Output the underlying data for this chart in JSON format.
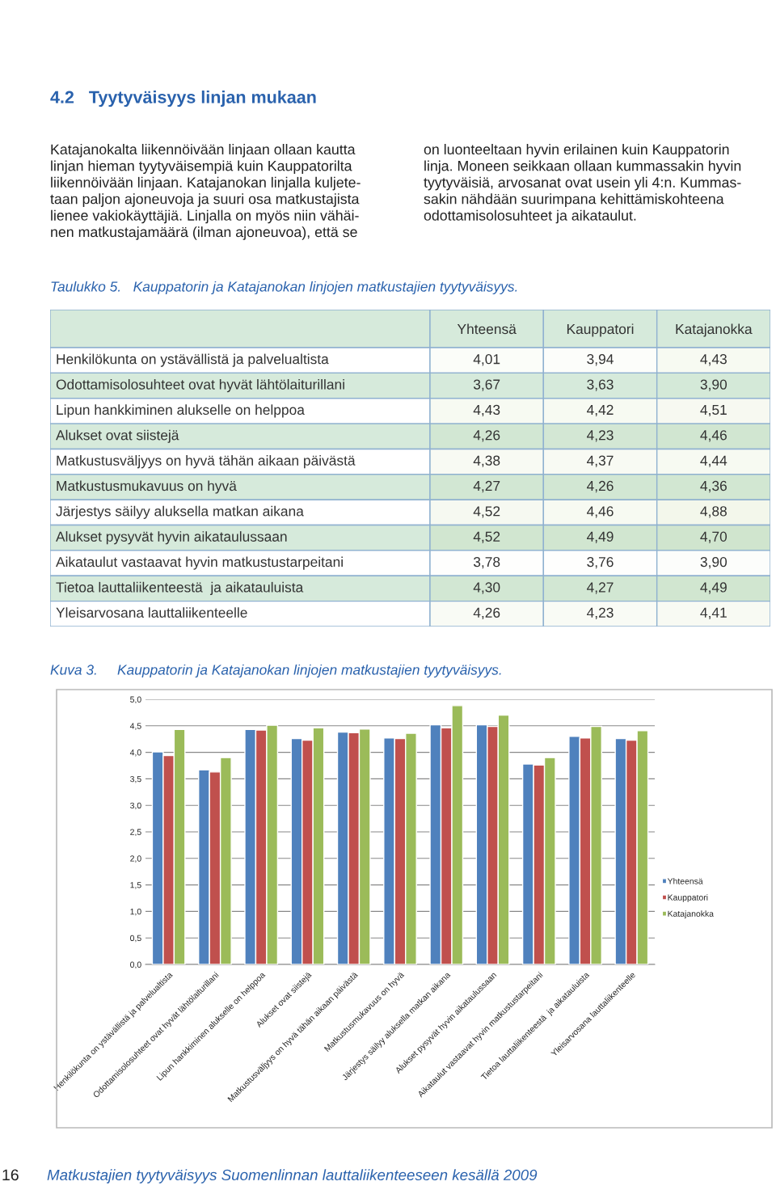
{
  "chart_data": [
    {
      "type": "heatmap",
      "title": "4.2   Tyytyväisyys linjan mukaan",
      "annotations": [
        "Katajanokalta liikennöivään linjaan ollaan kautta\nlinjan hieman tyytyväisempiä kuin Kauppatorilta\nliikennöivään linjaan. Katajanokan linjalla kuljete-\ntaan paljon ajoneuvoja ja suuri osa matkustajista\nlienee vakiokäyttäjiä. Linjalla on myös niin vähäi-\nnen matkustajamäärä (ilman ajoneuvoa), että se",
        "on luonteeltaan hyvin erilainen kuin Kauppatorin\nlinja. Moneen seikkaan ollaan kummassakin hyvin\ntyytyväisiä, arvosanat ovat usein yli 4:n. Kummas-\nsakin nähdään suurimpana kehittämiskohteena\nodottamisolosuhteet ja aikataulut.",
        "Taulukko 5.   Kauppatorin ja Katajanokan linjojen matkustajien tyytyväisyys."
      ],
      "categories": [
        "Yhteensä",
        "Kauppatori",
        "Katajanokka"
      ],
      "y_categories": [
        "Henkilökunta on ystävällistä ja palvelualtista",
        "Odottamisolosuhteet ovat hyvät lähtölaiturillani",
        "Lipun hankkiminen alukselle on helppoa",
        "Alukset ovat siistejä",
        "Matkustusväljyys on hyvä tähän aikaan päivästä",
        "Matkustusmukavuus on hyvä",
        "Järjestys säilyy aluksella matkan aikana",
        "Alukset pysyvät hyvin aikataulussaan",
        "Aikataulut vastaavat hyvin matkustustarpeitani",
        "Tietoa lauttaliikenteestä  ja aikatauluista",
        "Yleisarvosana lauttaliikenteelle"
      ],
      "cells": [
        [
          4.01,
          3.94,
          4.43
        ],
        [
          3.67,
          3.63,
          3.9
        ],
        [
          4.43,
          4.42,
          4.51
        ],
        [
          4.26,
          4.23,
          4.46
        ],
        [
          4.38,
          4.37,
          4.44
        ],
        [
          4.27,
          4.26,
          4.36
        ],
        [
          4.52,
          4.46,
          4.88
        ],
        [
          4.52,
          4.49,
          4.7
        ],
        [
          3.78,
          3.76,
          3.9
        ],
        [
          4.3,
          4.27,
          4.49
        ],
        [
          4.26,
          4.23,
          4.41
        ]
      ],
      "cell_labels": [
        [
          "4,01",
          "3,94",
          "4,43"
        ],
        [
          "3,67",
          "3,63",
          "3,90"
        ],
        [
          "4,43",
          "4,42",
          "4,51"
        ],
        [
          "4,26",
          "4,23",
          "4,46"
        ],
        [
          "4,38",
          "4,37",
          "4,44"
        ],
        [
          "4,27",
          "4,26",
          "4,36"
        ],
        [
          "4,52",
          "4,46",
          "4,88"
        ],
        [
          "4,52",
          "4,49",
          "4,70"
        ],
        [
          "3,78",
          "3,76",
          "3,90"
        ],
        [
          "4,30",
          "4,27",
          "4,49"
        ],
        [
          "4,26",
          "4,23",
          "4,41"
        ]
      ]
    },
    {
      "type": "bar",
      "title": "Kuva 3.     Kauppatorin ja Katajanokan linjojen matkustajien tyytyväisyys.",
      "annotations": [
        "16",
        "Matkustajien tyytyväisyys Suomenlinnan lauttaliikenteeseen kesällä 2009"
      ],
      "categories": [
        "Henkilökunta on ystävällistä ja palvelualtista",
        "Odottamisolosuhteet ovat hyvät lähtölaiturillani",
        "Lipun hankkiminen alukselle on helppoa",
        "Alukset ovat siistejä",
        "Matkustusväljyys on hyvä tähän aikaan päivästä",
        "Matkustusmukavuus on hyvä",
        "Järjestys säilyy aluksella matkan aikana",
        "Alukset pysyvät hyvin aikataulussaan",
        "Aikataulut vastaavat hyvin matkustustarpeitani",
        "Tietoa lauttaliikenteestä  ja aikatauluista",
        "Yleisarvosana lauttaliikenteelle"
      ],
      "series": [
        {
          "name": "Yhteensä",
          "color": "#4f81bd",
          "values": [
            4.01,
            3.67,
            4.43,
            4.26,
            4.38,
            4.27,
            4.52,
            4.52,
            3.78,
            4.3,
            4.26
          ]
        },
        {
          "name": "Kauppatori",
          "color": "#c0504d",
          "values": [
            3.94,
            3.63,
            4.42,
            4.23,
            4.37,
            4.26,
            4.46,
            4.49,
            3.76,
            4.27,
            4.23
          ]
        },
        {
          "name": "Katajanokka",
          "color": "#9bbb59",
          "values": [
            4.43,
            3.9,
            4.51,
            4.46,
            4.44,
            4.36,
            4.88,
            4.7,
            3.9,
            4.49,
            4.41
          ]
        }
      ],
      "ylim": [
        0,
        5
      ],
      "yticks": [
        {
          "value": 0,
          "label": "0,0"
        },
        {
          "value": 0.5,
          "label": "0,5"
        },
        {
          "value": 1,
          "label": "1,0"
        },
        {
          "value": 1.5,
          "label": "1,5"
        },
        {
          "value": 2,
          "label": "2,0"
        },
        {
          "value": 2.5,
          "label": "2,5"
        },
        {
          "value": 3,
          "label": "3,0"
        },
        {
          "value": 3.5,
          "label": "3,5"
        },
        {
          "value": 4,
          "label": "4,0"
        },
        {
          "value": 4.5,
          "label": "4,5"
        },
        {
          "value": 5,
          "label": "5,0"
        }
      ],
      "grid": "y",
      "legend": "right"
    }
  ]
}
